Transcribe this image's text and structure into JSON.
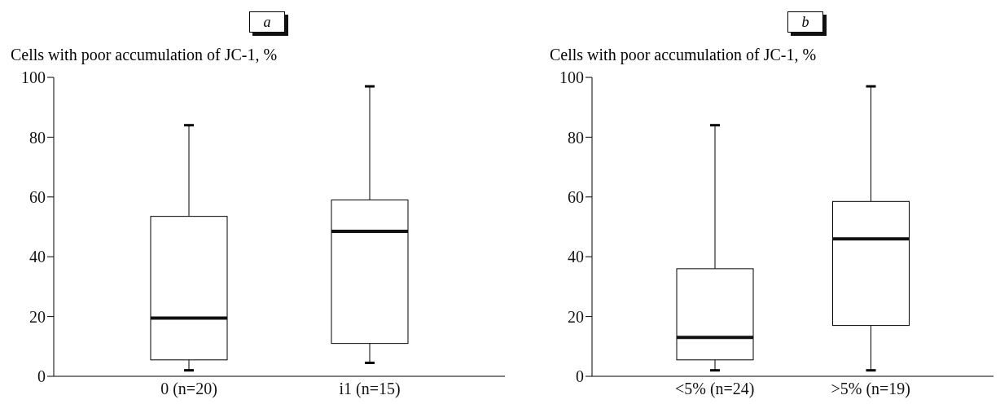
{
  "chart_data": [
    {
      "type": "box",
      "title": "a",
      "ylabel": "Cells with poor accumulation of JC-1, %",
      "categories": [
        "0 (n=20)",
        "i1 (n=15)"
      ],
      "boxes": [
        {
          "low": 2,
          "q1": 5.5,
          "median": 19.5,
          "q3": 53.5,
          "high": 84
        },
        {
          "low": 4.5,
          "q1": 11,
          "median": 48.5,
          "q3": 59,
          "high": 97
        }
      ],
      "ylim": [
        0,
        100
      ],
      "yticks": [
        0,
        20,
        40,
        60,
        80,
        100
      ],
      "grid": false
    },
    {
      "type": "box",
      "title": "b",
      "ylabel": "Cells with poor accumulation of JC-1, %",
      "categories": [
        "<5% (n=24)",
        ">5% (n=19)"
      ],
      "boxes": [
        {
          "low": 2,
          "q1": 5.5,
          "median": 13,
          "q3": 36,
          "high": 84
        },
        {
          "low": 2,
          "q1": 17,
          "median": 46,
          "q3": 58.5,
          "high": 97
        }
      ],
      "ylim": [
        0,
        100
      ],
      "yticks": [
        0,
        20,
        40,
        60,
        80,
        100
      ],
      "grid": false
    }
  ]
}
